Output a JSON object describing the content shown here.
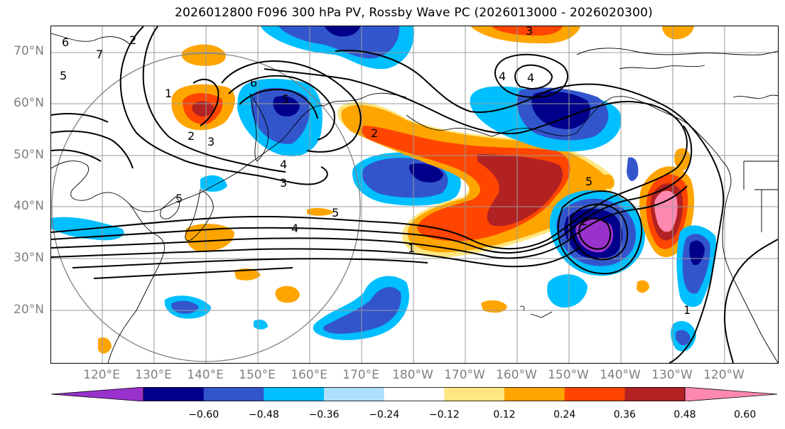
{
  "title": "2026012800 F096 300 hPa PV, Rossby Wave PC (2026013000 - 2026020300)",
  "lat_labels": [
    "70°N",
    "60°N",
    "50°N",
    "40°N",
    "30°N",
    "20°N"
  ],
  "lon_labels": [
    "120°E",
    "130°E",
    "140°E",
    "150°E",
    "160°E",
    "170°E",
    "180°W",
    "170°W",
    "160°W",
    "150°W",
    "140°W",
    "130°W",
    "120°W"
  ],
  "colorbar": {
    "ticks": [
      "−0.60",
      "−0.48",
      "−0.36",
      "−0.24",
      "−0.12",
      "0.12",
      "0.24",
      "0.36",
      "0.48",
      "0.60"
    ],
    "colors": [
      "#9932cc",
      "#00008b",
      "#3355cc",
      "#00bfff",
      "#b0e0ff",
      "#ffffff",
      "#ffe680",
      "#ffa500",
      "#ff4500",
      "#b22222",
      "#ff88b0"
    ]
  },
  "contour_labels": [
    "6",
    "2",
    "1",
    "5",
    "7",
    "6",
    "5",
    "3",
    "4",
    "3",
    "4",
    "5",
    "4",
    "1",
    "2",
    "5",
    "2",
    "5",
    "3",
    "4",
    "1",
    "2"
  ]
}
